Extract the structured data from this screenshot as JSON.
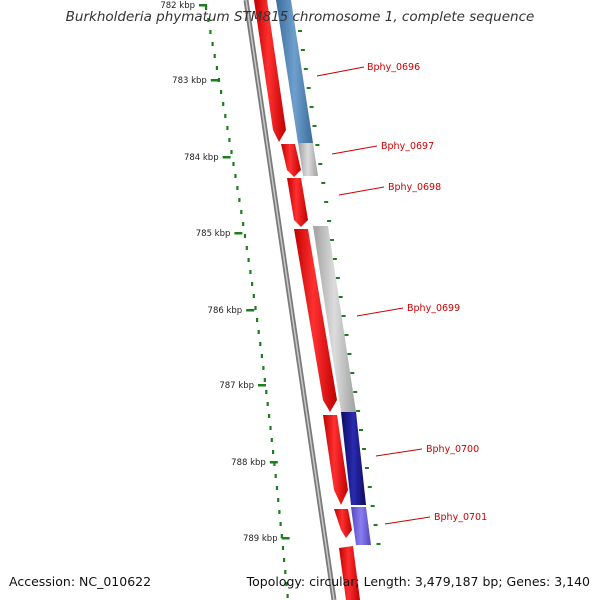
{
  "title": "Burkholderia phymatum STM815 chromosome 1, complete sequence",
  "ticks": [
    {
      "label": "782 kbp"
    },
    {
      "label": "783 kbp"
    },
    {
      "label": "784 kbp"
    },
    {
      "label": "785 kbp"
    },
    {
      "label": "786 kbp"
    },
    {
      "label": "787 kbp"
    },
    {
      "label": "788 kbp"
    },
    {
      "label": "789 kbp"
    }
  ],
  "genes": [
    {
      "name": "Bphy_0696",
      "color": "#4a7fb5"
    },
    {
      "name": "Bphy_0697",
      "color": "#b8b8b8"
    },
    {
      "name": "Bphy_0698",
      "color": "#b8b8b8"
    },
    {
      "name": "Bphy_0699",
      "color": "#b8b8b8"
    },
    {
      "name": "Bphy_0700",
      "color": "#1a1a8c"
    },
    {
      "name": "Bphy_0701",
      "color": "#6a5acd"
    }
  ],
  "colors": {
    "cds": "#ff0000",
    "backbone": "#808080",
    "gc_skew": "#1e7d1e",
    "label": "#cc0000"
  },
  "footer": {
    "accession": "Accession: NC_010622",
    "topology": "Topology: circular; Length: 3,479,187 bp; Genes: 3,140"
  }
}
